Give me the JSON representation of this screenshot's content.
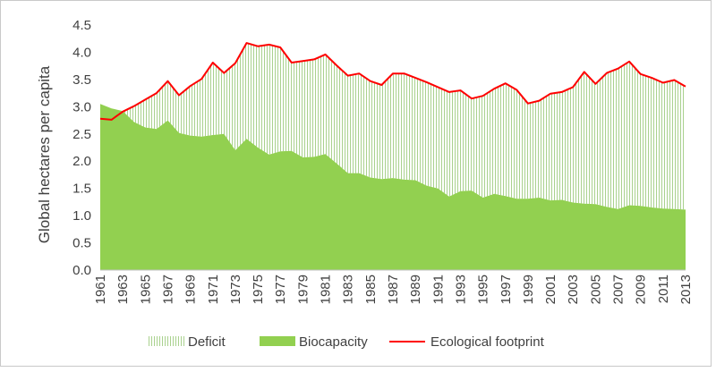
{
  "chart_data": {
    "type": "area",
    "title": "",
    "xlabel": "",
    "ylabel": "Global hectares per capita",
    "ylim": [
      0,
      4.5
    ],
    "yticks": [
      "0.0",
      "0.5",
      "1.0",
      "1.5",
      "2.0",
      "2.5",
      "3.0",
      "3.5",
      "4.0",
      "4.5"
    ],
    "grid": false,
    "legend_position": "bottom",
    "x": [
      1961,
      1962,
      1963,
      1964,
      1965,
      1966,
      1967,
      1968,
      1969,
      1970,
      1971,
      1972,
      1973,
      1974,
      1975,
      1976,
      1977,
      1978,
      1979,
      1980,
      1981,
      1982,
      1983,
      1984,
      1985,
      1986,
      1987,
      1988,
      1989,
      1990,
      1991,
      1992,
      1993,
      1994,
      1995,
      1996,
      1997,
      1998,
      1999,
      2000,
      2001,
      2002,
      2003,
      2004,
      2005,
      2006,
      2007,
      2008,
      2009,
      2010,
      2011,
      2012,
      2013
    ],
    "xtick_labels": [
      "1961",
      "1963",
      "1965",
      "1967",
      "1969",
      "1971",
      "1973",
      "1975",
      "1977",
      "1979",
      "1981",
      "1983",
      "1985",
      "1987",
      "1989",
      "1991",
      "1993",
      "1995",
      "1997",
      "1999",
      "2001",
      "2003",
      "2005",
      "2007",
      "2009",
      "2011",
      "2013"
    ],
    "series": [
      {
        "name": "Biocapacity",
        "style": "filled-area",
        "color": "#92d050",
        "values": [
          3.05,
          2.97,
          2.92,
          2.72,
          2.62,
          2.59,
          2.75,
          2.52,
          2.47,
          2.45,
          2.48,
          2.5,
          2.2,
          2.41,
          2.25,
          2.12,
          2.18,
          2.19,
          2.07,
          2.08,
          2.13,
          1.96,
          1.78,
          1.78,
          1.7,
          1.67,
          1.69,
          1.66,
          1.65,
          1.55,
          1.5,
          1.35,
          1.45,
          1.46,
          1.33,
          1.4,
          1.36,
          1.31,
          1.31,
          1.33,
          1.28,
          1.29,
          1.24,
          1.22,
          1.21,
          1.16,
          1.12,
          1.19,
          1.18,
          1.15,
          1.13,
          1.12,
          1.11
        ]
      },
      {
        "name": "Ecological footprint",
        "style": "line",
        "color": "#ff0000",
        "values": [
          2.78,
          2.76,
          2.91,
          3.01,
          3.13,
          3.25,
          3.47,
          3.21,
          3.38,
          3.51,
          3.81,
          3.62,
          3.8,
          4.17,
          4.11,
          4.14,
          4.09,
          3.81,
          3.84,
          3.87,
          3.96,
          3.76,
          3.57,
          3.61,
          3.47,
          3.4,
          3.61,
          3.61,
          3.53,
          3.45,
          3.36,
          3.27,
          3.3,
          3.15,
          3.2,
          3.33,
          3.43,
          3.31,
          3.06,
          3.11,
          3.24,
          3.27,
          3.36,
          3.64,
          3.42,
          3.62,
          3.7,
          3.83,
          3.6,
          3.53,
          3.44,
          3.49,
          3.37
        ]
      }
    ],
    "legend": [
      {
        "name": "Deficit",
        "style": "hatched",
        "color": "#a9d18e"
      },
      {
        "name": "Biocapacity",
        "style": "filled",
        "color": "#92d050"
      },
      {
        "name": "Ecological footprint",
        "style": "line",
        "color": "#ff0000"
      }
    ]
  }
}
